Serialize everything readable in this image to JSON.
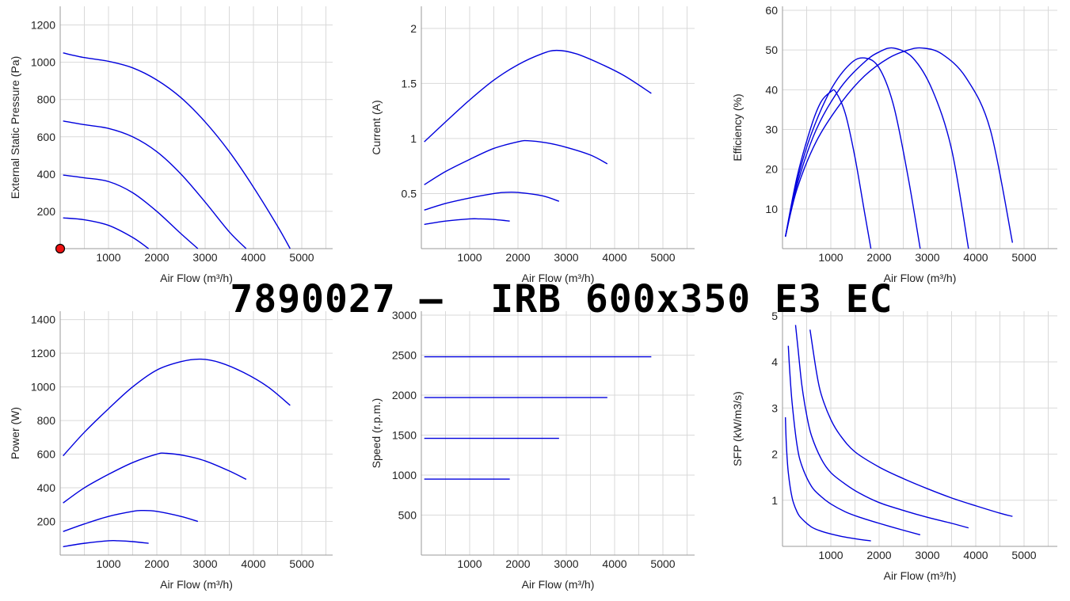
{
  "title": "7890027 –  IRB 600x350 E3 EC",
  "colors": {
    "curve": "#0000dd",
    "marker": "#ee1111"
  },
  "chart_data": [
    {
      "id": "pressure",
      "type": "line",
      "title": "",
      "xlabel": "Air Flow (m³/h)",
      "ylabel": "External Static Pressure (Pa)",
      "xlim": [
        0,
        5500
      ],
      "ylim": [
        0,
        1300
      ],
      "xticks": [
        1000,
        2000,
        3000,
        4000,
        5000
      ],
      "yticks": [
        200,
        400,
        600,
        800,
        1000,
        1200
      ],
      "grid": true,
      "marker": {
        "x": 0,
        "y": 0
      },
      "series": [
        {
          "x": [
            60,
            500,
            1000,
            1500,
            2000,
            2500,
            3000,
            3500,
            4000,
            4500,
            4760
          ],
          "y": [
            1050,
            1025,
            1005,
            970,
            905,
            810,
            680,
            520,
            330,
            120,
            0
          ]
        },
        {
          "x": [
            60,
            500,
            1000,
            1500,
            2000,
            2500,
            3000,
            3500,
            3850
          ],
          "y": [
            685,
            665,
            645,
            600,
            520,
            400,
            250,
            90,
            0
          ]
        },
        {
          "x": [
            60,
            500,
            1000,
            1500,
            2000,
            2500,
            2850
          ],
          "y": [
            395,
            380,
            360,
            300,
            200,
            80,
            0
          ]
        },
        {
          "x": [
            60,
            500,
            1000,
            1500,
            1830
          ],
          "y": [
            165,
            155,
            125,
            60,
            0
          ]
        }
      ]
    },
    {
      "id": "current",
      "type": "line",
      "title": "",
      "xlabel": "Air Flow (m³/h)",
      "ylabel": "Current (A)",
      "xlim": [
        0,
        5500
      ],
      "ylim": [
        0,
        2.2
      ],
      "xticks": [
        1000,
        2000,
        3000,
        4000,
        5000
      ],
      "yticks": [
        0.5,
        1,
        1.5,
        2
      ],
      "grid": true,
      "series": [
        {
          "x": [
            60,
            500,
            1000,
            1500,
            2000,
            2500,
            2800,
            3200,
            3700,
            4200,
            4760
          ],
          "y": [
            0.97,
            1.15,
            1.35,
            1.53,
            1.67,
            1.77,
            1.8,
            1.77,
            1.68,
            1.57,
            1.41
          ]
        },
        {
          "x": [
            60,
            500,
            1000,
            1500,
            2000,
            2200,
            2600,
            3000,
            3500,
            3850
          ],
          "y": [
            0.58,
            0.7,
            0.81,
            0.91,
            0.97,
            0.98,
            0.96,
            0.92,
            0.85,
            0.77
          ]
        },
        {
          "x": [
            60,
            500,
            1000,
            1500,
            1700,
            2000,
            2500,
            2850
          ],
          "y": [
            0.35,
            0.41,
            0.46,
            0.5,
            0.51,
            0.51,
            0.48,
            0.43
          ]
        },
        {
          "x": [
            60,
            500,
            1000,
            1200,
            1500,
            1830
          ],
          "y": [
            0.22,
            0.25,
            0.27,
            0.27,
            0.265,
            0.25
          ]
        }
      ]
    },
    {
      "id": "efficiency",
      "type": "line",
      "title": "",
      "xlabel": "Air Flow (m³/h)",
      "ylabel": "Efficiency (%)",
      "xlim": [
        0,
        5500
      ],
      "ylim": [
        0,
        61
      ],
      "xticks": [
        1000,
        2000,
        3000,
        4000,
        5000
      ],
      "yticks": [
        10,
        20,
        30,
        40,
        50,
        60
      ],
      "grid": true,
      "series": [
        {
          "x": [
            60,
            300,
            600,
            800,
            1000,
            1100,
            1300,
            1500,
            1700,
            1830
          ],
          "y": [
            3,
            18,
            31,
            37,
            39.5,
            39.5,
            34,
            23,
            9,
            0
          ]
        },
        {
          "x": [
            60,
            300,
            600,
            1000,
            1400,
            1700,
            2000,
            2300,
            2600,
            2850
          ],
          "y": [
            3,
            17,
            29,
            40,
            46.5,
            48,
            45.5,
            36,
            18,
            0
          ]
        },
        {
          "x": [
            60,
            300,
            700,
            1200,
            1700,
            2000,
            2300,
            2700,
            3100,
            3500,
            3850
          ],
          "y": [
            3,
            16,
            30,
            40.5,
            47,
            49.5,
            50.5,
            48,
            40,
            25,
            0
          ]
        },
        {
          "x": [
            60,
            300,
            700,
            1200,
            1700,
            2200,
            2600,
            2900,
            3300,
            3800,
            4300,
            4760
          ],
          "y": [
            3,
            15,
            27,
            36.5,
            43.5,
            48,
            50,
            50.5,
            49,
            43,
            30,
            1.5
          ]
        }
      ]
    },
    {
      "id": "power",
      "type": "line",
      "title": "",
      "xlabel": "Air Flow (m³/h)",
      "ylabel": "Power (W)",
      "xlim": [
        0,
        5500
      ],
      "ylim": [
        0,
        1450
      ],
      "xticks": [
        1000,
        2000,
        3000,
        4000,
        5000
      ],
      "yticks": [
        200,
        400,
        600,
        800,
        1000,
        1200,
        1400
      ],
      "grid": true,
      "series": [
        {
          "x": [
            60,
            500,
            1000,
            1500,
            2000,
            2500,
            2900,
            3300,
            3800,
            4300,
            4760
          ],
          "y": [
            590,
            730,
            870,
            1000,
            1100,
            1150,
            1165,
            1145,
            1085,
            1000,
            890
          ]
        },
        {
          "x": [
            60,
            500,
            1000,
            1500,
            2000,
            2200,
            2600,
            3000,
            3500,
            3850
          ],
          "y": [
            310,
            400,
            480,
            550,
            600,
            605,
            590,
            560,
            500,
            450
          ]
        },
        {
          "x": [
            60,
            500,
            1000,
            1500,
            1700,
            2000,
            2500,
            2850
          ],
          "y": [
            140,
            185,
            230,
            260,
            265,
            260,
            230,
            200
          ]
        },
        {
          "x": [
            60,
            500,
            1000,
            1200,
            1500,
            1830
          ],
          "y": [
            50,
            70,
            85,
            85,
            80,
            70
          ]
        }
      ]
    },
    {
      "id": "speed",
      "type": "line",
      "title": "",
      "xlabel": "Air Flow (m³/h)",
      "ylabel": "Speed (r.p.m.)",
      "xlim": [
        0,
        5500
      ],
      "ylim": [
        0,
        3050
      ],
      "xticks": [
        1000,
        2000,
        3000,
        4000,
        5000
      ],
      "yticks": [
        500,
        1000,
        1500,
        2000,
        2500,
        3000
      ],
      "grid": true,
      "series": [
        {
          "x": [
            60,
            4760
          ],
          "y": [
            2480,
            2480
          ]
        },
        {
          "x": [
            60,
            3850
          ],
          "y": [
            1970,
            1970
          ]
        },
        {
          "x": [
            60,
            2850
          ],
          "y": [
            1460,
            1460
          ]
        },
        {
          "x": [
            60,
            1830
          ],
          "y": [
            950,
            950
          ]
        }
      ]
    },
    {
      "id": "sfp",
      "type": "line",
      "title": "",
      "xlabel": "Air Flow (m³/h)",
      "ylabel": "SFP (kW/m3/s)",
      "xlim": [
        0,
        5500
      ],
      "ylim": [
        0,
        5.1
      ],
      "xticks": [
        1000,
        2000,
        3000,
        4000,
        5000
      ],
      "yticks": [
        1,
        2,
        3,
        4,
        5
      ],
      "grid": true,
      "series": [
        {
          "x": [
            60,
            80,
            120,
            200,
            300,
            400,
            600,
            800,
            1000,
            1300,
            1600,
            1830
          ],
          "y": [
            2.8,
            2.2,
            1.6,
            1.05,
            0.75,
            0.6,
            0.42,
            0.33,
            0.27,
            0.2,
            0.15,
            0.12
          ]
        },
        {
          "x": [
            120,
            150,
            200,
            300,
            400,
            600,
            800,
            1000,
            1300,
            1600,
            2000,
            2500,
            2850
          ],
          "y": [
            4.35,
            3.8,
            3.1,
            2.2,
            1.75,
            1.3,
            1.08,
            0.92,
            0.75,
            0.63,
            0.5,
            0.35,
            0.25
          ]
        },
        {
          "x": [
            270,
            320,
            400,
            500,
            600,
            800,
            1000,
            1300,
            1600,
            2000,
            2500,
            3000,
            3500,
            3850
          ],
          "y": [
            4.8,
            4.3,
            3.5,
            2.85,
            2.4,
            1.9,
            1.6,
            1.35,
            1.15,
            0.95,
            0.78,
            0.63,
            0.5,
            0.4
          ]
        },
        {
          "x": [
            570,
            700,
            800,
            1000,
            1200,
            1500,
            2000,
            2500,
            3000,
            3500,
            4000,
            4500,
            4760
          ],
          "y": [
            4.7,
            3.8,
            3.3,
            2.75,
            2.4,
            2.05,
            1.72,
            1.47,
            1.25,
            1.05,
            0.88,
            0.72,
            0.65
          ]
        }
      ]
    }
  ]
}
